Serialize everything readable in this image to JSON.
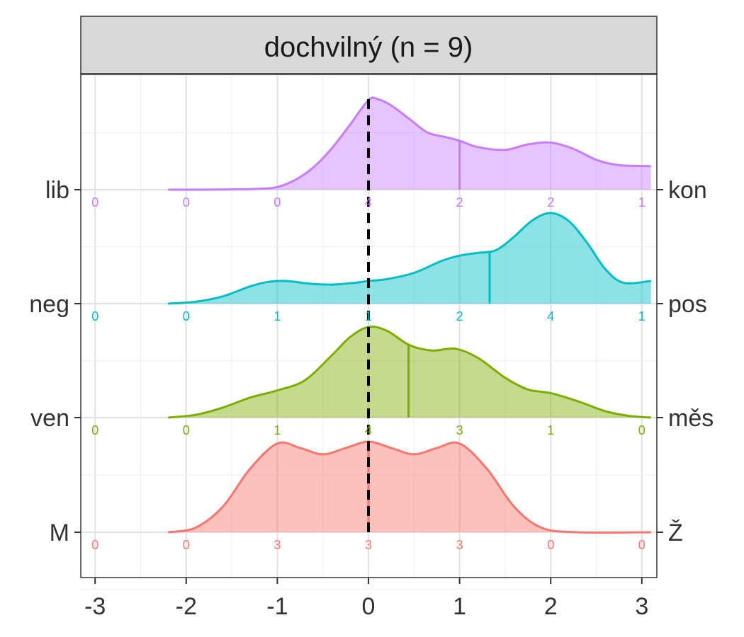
{
  "chart_data": {
    "type": "ridgeline",
    "title": "dochvilný (n = 9)",
    "xlim": [
      -3.1,
      3.1
    ],
    "x_ticks": [
      -3,
      -2,
      -1,
      0,
      1,
      2,
      3
    ],
    "x_tick_labels": [
      "-3",
      "-2",
      "-1",
      "0",
      "1",
      "2",
      "3"
    ],
    "reference_line_x": 0,
    "count_positions": [
      -3,
      -2,
      -1,
      0,
      1,
      2,
      3
    ],
    "grid": true,
    "series": [
      {
        "left_label": "lib",
        "right_label": "kon",
        "color": "#C77CFF",
        "counts": [
          "0",
          "0",
          "0",
          "4",
          "2",
          "2",
          "1"
        ],
        "mean": 1.0,
        "density": [
          [
            -2.2,
            0.0
          ],
          [
            -1.6,
            0.002
          ],
          [
            -1.2,
            0.01
          ],
          [
            -1.0,
            0.03
          ],
          [
            -0.8,
            0.11
          ],
          [
            -0.6,
            0.25
          ],
          [
            -0.4,
            0.46
          ],
          [
            -0.2,
            0.72
          ],
          [
            0.0,
            0.99
          ],
          [
            0.1,
            1.0
          ],
          [
            0.25,
            0.93
          ],
          [
            0.45,
            0.78
          ],
          [
            0.65,
            0.63
          ],
          [
            0.85,
            0.58
          ],
          [
            1.0,
            0.54
          ],
          [
            1.2,
            0.47
          ],
          [
            1.5,
            0.44
          ],
          [
            1.75,
            0.5
          ],
          [
            2.0,
            0.52
          ],
          [
            2.25,
            0.45
          ],
          [
            2.5,
            0.33
          ],
          [
            2.75,
            0.27
          ],
          [
            3.1,
            0.26
          ]
        ]
      },
      {
        "left_label": "neg",
        "right_label": "pos",
        "color": "#00BFC4",
        "counts": [
          "0",
          "0",
          "1",
          "1",
          "2",
          "4",
          "1"
        ],
        "mean": 1.33,
        "density": [
          [
            -2.2,
            0.0
          ],
          [
            -1.9,
            0.02
          ],
          [
            -1.6,
            0.08
          ],
          [
            -1.3,
            0.19
          ],
          [
            -1.1,
            0.24
          ],
          [
            -0.9,
            0.25
          ],
          [
            -0.65,
            0.22
          ],
          [
            -0.4,
            0.21
          ],
          [
            -0.15,
            0.23
          ],
          [
            0.0,
            0.25
          ],
          [
            0.2,
            0.27
          ],
          [
            0.5,
            0.34
          ],
          [
            0.8,
            0.47
          ],
          [
            1.0,
            0.53
          ],
          [
            1.2,
            0.56
          ],
          [
            1.4,
            0.59
          ],
          [
            1.6,
            0.74
          ],
          [
            1.8,
            0.92
          ],
          [
            2.0,
            1.0
          ],
          [
            2.2,
            0.91
          ],
          [
            2.4,
            0.67
          ],
          [
            2.6,
            0.38
          ],
          [
            2.8,
            0.23
          ],
          [
            3.1,
            0.25
          ]
        ]
      },
      {
        "left_label": "ven",
        "right_label": "měs",
        "color": "#7CAE00",
        "counts": [
          "0",
          "0",
          "1",
          "4",
          "3",
          "1",
          "0"
        ],
        "mean": 0.44,
        "density": [
          [
            -2.2,
            0.0
          ],
          [
            -1.9,
            0.03
          ],
          [
            -1.6,
            0.11
          ],
          [
            -1.3,
            0.22
          ],
          [
            -1.0,
            0.3
          ],
          [
            -0.7,
            0.41
          ],
          [
            -0.4,
            0.69
          ],
          [
            -0.2,
            0.89
          ],
          [
            0.0,
            1.0
          ],
          [
            0.2,
            0.96
          ],
          [
            0.45,
            0.8
          ],
          [
            0.7,
            0.74
          ],
          [
            0.95,
            0.76
          ],
          [
            1.2,
            0.66
          ],
          [
            1.5,
            0.44
          ],
          [
            1.75,
            0.31
          ],
          [
            2.0,
            0.27
          ],
          [
            2.3,
            0.18
          ],
          [
            2.6,
            0.07
          ],
          [
            2.85,
            0.02
          ],
          [
            3.1,
            0.0
          ]
        ]
      },
      {
        "left_label": "M",
        "right_label": "Ž",
        "color": "#F8766D",
        "counts": [
          "0",
          "0",
          "3",
          "3",
          "3",
          "0",
          "0"
        ],
        "mean": 0.0,
        "density": [
          [
            -2.2,
            0.0
          ],
          [
            -1.9,
            0.05
          ],
          [
            -1.6,
            0.28
          ],
          [
            -1.3,
            0.7
          ],
          [
            -1.0,
            0.98
          ],
          [
            -0.75,
            0.93
          ],
          [
            -0.5,
            0.86
          ],
          [
            -0.25,
            0.93
          ],
          [
            0.0,
            1.0
          ],
          [
            0.25,
            0.93
          ],
          [
            0.5,
            0.86
          ],
          [
            0.75,
            0.93
          ],
          [
            1.0,
            0.98
          ],
          [
            1.3,
            0.7
          ],
          [
            1.6,
            0.28
          ],
          [
            1.9,
            0.05
          ],
          [
            2.3,
            0.0
          ],
          [
            3.1,
            0.0
          ]
        ]
      }
    ]
  }
}
